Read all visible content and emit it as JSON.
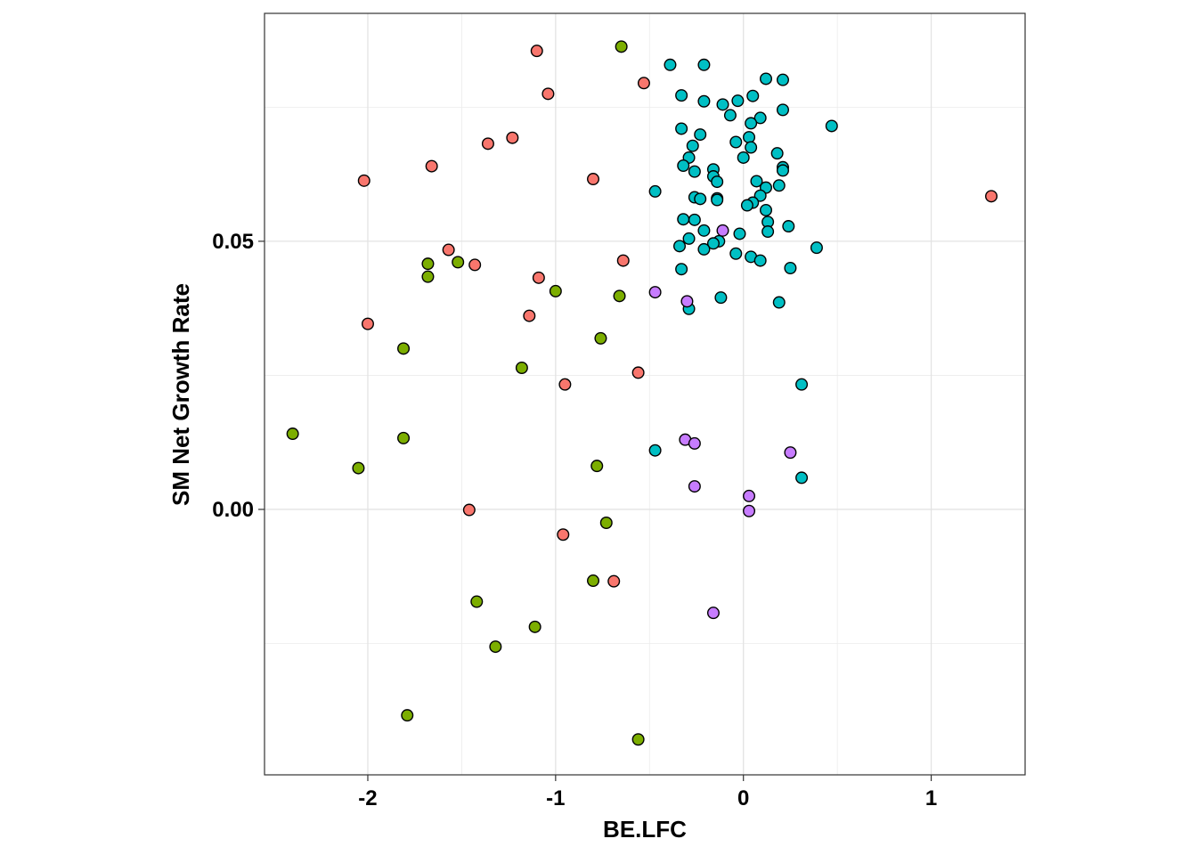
{
  "chart_data": {
    "type": "scatter",
    "title": "",
    "xlabel": "BE.LFC",
    "ylabel": "SM Net Growth Rate",
    "xlim": [
      -2.55,
      1.5
    ],
    "ylim": [
      -0.0495,
      0.0925
    ],
    "x_ticks": [
      -2,
      -1,
      0,
      1
    ],
    "x_tick_labels": [
      "-2",
      "-1",
      "0",
      "1"
    ],
    "y_ticks": [
      0.0,
      0.05
    ],
    "y_tick_labels": [
      "0.00",
      "0.05"
    ],
    "x_minor_grid": [
      -1.5,
      -0.5,
      0.5
    ],
    "y_minor_grid": [
      -0.025,
      0.025,
      0.075
    ],
    "grid": true,
    "legend": "none",
    "series": [
      {
        "color": "#F8766D",
        "points": [
          [
            -1.1,
            0.0855
          ],
          [
            -1.04,
            0.0775
          ],
          [
            -0.53,
            0.0795
          ],
          [
            -1.36,
            0.0682
          ],
          [
            -1.23,
            0.0693
          ],
          [
            -1.66,
            0.064
          ],
          [
            -2.02,
            0.0613
          ],
          [
            -0.8,
            0.0616
          ],
          [
            1.32,
            0.0584
          ],
          [
            -1.57,
            0.0484
          ],
          [
            -1.43,
            0.0456
          ],
          [
            -0.64,
            0.0464
          ],
          [
            -1.09,
            0.0432
          ],
          [
            -1.14,
            0.0361
          ],
          [
            -2.0,
            0.0346
          ],
          [
            -0.56,
            0.0255
          ],
          [
            -0.95,
            0.0233
          ],
          [
            -1.46,
            -0.0001
          ],
          [
            -0.96,
            -0.0047
          ],
          [
            -0.69,
            -0.0134
          ]
        ]
      },
      {
        "color": "#7CAE00",
        "points": [
          [
            -0.65,
            0.0863
          ],
          [
            -1.68,
            0.0458
          ],
          [
            -1.52,
            0.0461
          ],
          [
            -1.68,
            0.0434
          ],
          [
            -1.0,
            0.0407
          ],
          [
            -0.66,
            0.0398
          ],
          [
            -0.76,
            0.0319
          ],
          [
            -1.81,
            0.03
          ],
          [
            -1.18,
            0.0264
          ],
          [
            -2.4,
            0.0141
          ],
          [
            -1.81,
            0.0133
          ],
          [
            -2.05,
            0.0077
          ],
          [
            -0.78,
            0.0081
          ],
          [
            -0.73,
            -0.0025
          ],
          [
            -0.8,
            -0.0133
          ],
          [
            -1.42,
            -0.0172
          ],
          [
            -1.11,
            -0.0219
          ],
          [
            -1.32,
            -0.0256
          ],
          [
            -1.79,
            -0.0384
          ],
          [
            -0.56,
            -0.0429
          ]
        ]
      },
      {
        "color": "#00BFC4",
        "points": [
          [
            -0.39,
            0.0829
          ],
          [
            -0.21,
            0.0829
          ],
          [
            0.12,
            0.0803
          ],
          [
            0.21,
            0.0801
          ],
          [
            -0.33,
            0.0772
          ],
          [
            -0.21,
            0.0761
          ],
          [
            -0.11,
            0.0755
          ],
          [
            -0.03,
            0.0762
          ],
          [
            0.05,
            0.0771
          ],
          [
            0.21,
            0.0745
          ],
          [
            -0.07,
            0.0735
          ],
          [
            0.09,
            0.073
          ],
          [
            0.04,
            0.072
          ],
          [
            0.47,
            0.0715
          ],
          [
            -0.33,
            0.071
          ],
          [
            -0.23,
            0.0699
          ],
          [
            0.03,
            0.0694
          ],
          [
            -0.04,
            0.0685
          ],
          [
            -0.27,
            0.0678
          ],
          [
            0.04,
            0.0675
          ],
          [
            0.18,
            0.0664
          ],
          [
            0.0,
            0.0656
          ],
          [
            -0.29,
            0.0656
          ],
          [
            -0.32,
            0.0641
          ],
          [
            0.21,
            0.0638
          ],
          [
            -0.16,
            0.0634
          ],
          [
            -0.26,
            0.063
          ],
          [
            0.21,
            0.0632
          ],
          [
            -0.16,
            0.0621
          ],
          [
            -0.14,
            0.0611
          ],
          [
            0.07,
            0.0612
          ],
          [
            0.19,
            0.0604
          ],
          [
            0.12,
            0.06
          ],
          [
            -0.47,
            0.0593
          ],
          [
            0.09,
            0.0585
          ],
          [
            -0.26,
            0.0582
          ],
          [
            -0.23,
            0.0579
          ],
          [
            -0.14,
            0.058
          ],
          [
            -0.14,
            0.0577
          ],
          [
            0.05,
            0.0572
          ],
          [
            0.02,
            0.0567
          ],
          [
            0.12,
            0.0558
          ],
          [
            -0.32,
            0.0541
          ],
          [
            -0.26,
            0.054
          ],
          [
            0.13,
            0.0536
          ],
          [
            0.24,
            0.0528
          ],
          [
            -0.21,
            0.052
          ],
          [
            0.13,
            0.0518
          ],
          [
            -0.02,
            0.0514
          ],
          [
            -0.29,
            0.0505
          ],
          [
            -0.13,
            0.05
          ],
          [
            -0.16,
            0.0496
          ],
          [
            -0.34,
            0.0491
          ],
          [
            0.39,
            0.0488
          ],
          [
            -0.21,
            0.0485
          ],
          [
            -0.04,
            0.0477
          ],
          [
            0.04,
            0.0471
          ],
          [
            0.09,
            0.0464
          ],
          [
            -0.33,
            0.0448
          ],
          [
            0.25,
            0.045
          ],
          [
            -0.12,
            0.0395
          ],
          [
            0.19,
            0.0386
          ],
          [
            -0.29,
            0.0374
          ],
          [
            0.31,
            0.0233
          ],
          [
            -0.47,
            0.011
          ],
          [
            0.31,
            0.0059
          ]
        ]
      },
      {
        "color": "#C77CFF",
        "points": [
          [
            -0.11,
            0.052
          ],
          [
            -0.47,
            0.0405
          ],
          [
            -0.3,
            0.0388
          ],
          [
            -0.31,
            0.013
          ],
          [
            -0.26,
            0.0123
          ],
          [
            0.25,
            0.0106
          ],
          [
            -0.26,
            0.0043
          ],
          [
            0.03,
            0.0025
          ],
          [
            0.03,
            -0.0003
          ],
          [
            -0.16,
            -0.0193
          ]
        ]
      }
    ]
  }
}
